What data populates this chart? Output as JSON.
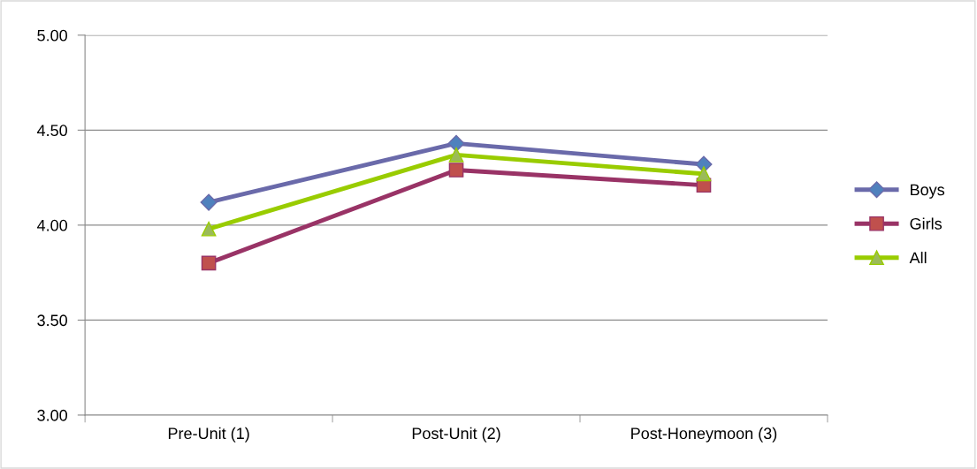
{
  "chart_data": {
    "type": "line",
    "categories": [
      "Pre-Unit (1)",
      "Post-Unit (2)",
      "Post-Honeymoon (3)"
    ],
    "series": [
      {
        "name": "Boys",
        "color": "#4f81bd",
        "values": [
          4.12,
          4.43,
          4.32
        ],
        "marker": "diamond"
      },
      {
        "name": "Girls",
        "color": "#c0504d",
        "values": [
          3.8,
          4.29,
          4.21
        ],
        "marker": "square"
      },
      {
        "name": "All",
        "color": "#9bbb59",
        "values": [
          3.98,
          4.37,
          4.27
        ],
        "marker": "triangle"
      }
    ],
    "ylim": [
      3.0,
      5.0
    ],
    "yticks": [
      {
        "value": 3.0,
        "label": "3.00"
      },
      {
        "value": 3.5,
        "label": "3.50"
      },
      {
        "value": 4.0,
        "label": "4.00"
      },
      {
        "value": 4.5,
        "label": "4.50"
      },
      {
        "value": 5.0,
        "label": "5.00"
      }
    ],
    "grid": "y",
    "legend": "right"
  }
}
